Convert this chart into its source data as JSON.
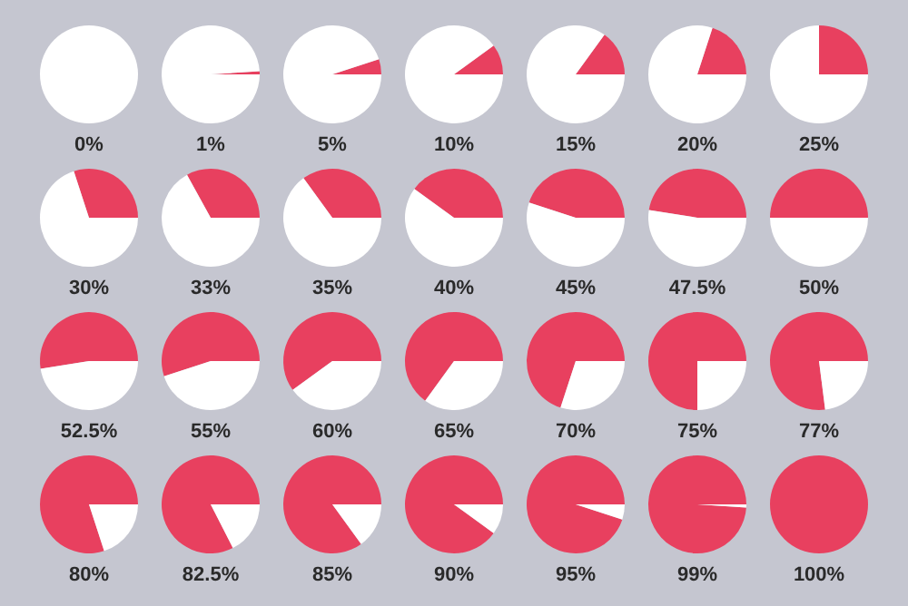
{
  "chart_data": [
    {
      "type": "pie",
      "title": "0%",
      "categories": [
        null,
        null
      ],
      "values": [
        0,
        100
      ],
      "colors": [
        "#e8405f",
        "#ffffff"
      ]
    },
    {
      "type": "pie",
      "title": "1%",
      "categories": [
        null,
        null
      ],
      "values": [
        1,
        99
      ],
      "colors": [
        "#e8405f",
        "#ffffff"
      ]
    },
    {
      "type": "pie",
      "title": "5%",
      "categories": [
        null,
        null
      ],
      "values": [
        5,
        95
      ],
      "colors": [
        "#e8405f",
        "#ffffff"
      ]
    },
    {
      "type": "pie",
      "title": "10%",
      "categories": [
        null,
        null
      ],
      "values": [
        10,
        90
      ],
      "colors": [
        "#e8405f",
        "#ffffff"
      ]
    },
    {
      "type": "pie",
      "title": "15%",
      "categories": [
        null,
        null
      ],
      "values": [
        15,
        85
      ],
      "colors": [
        "#e8405f",
        "#ffffff"
      ]
    },
    {
      "type": "pie",
      "title": "20%",
      "categories": [
        null,
        null
      ],
      "values": [
        20,
        80
      ],
      "colors": [
        "#e8405f",
        "#ffffff"
      ]
    },
    {
      "type": "pie",
      "title": "25%",
      "categories": [
        null,
        null
      ],
      "values": [
        25,
        75
      ],
      "colors": [
        "#e8405f",
        "#ffffff"
      ]
    },
    {
      "type": "pie",
      "title": "30%",
      "categories": [
        null,
        null
      ],
      "values": [
        30,
        70
      ],
      "colors": [
        "#e8405f",
        "#ffffff"
      ]
    },
    {
      "type": "pie",
      "title": "33%",
      "categories": [
        null,
        null
      ],
      "values": [
        33,
        67
      ],
      "colors": [
        "#e8405f",
        "#ffffff"
      ]
    },
    {
      "type": "pie",
      "title": "35%",
      "categories": [
        null,
        null
      ],
      "values": [
        35,
        65
      ],
      "colors": [
        "#e8405f",
        "#ffffff"
      ]
    },
    {
      "type": "pie",
      "title": "40%",
      "categories": [
        null,
        null
      ],
      "values": [
        40,
        60
      ],
      "colors": [
        "#e8405f",
        "#ffffff"
      ]
    },
    {
      "type": "pie",
      "title": "45%",
      "categories": [
        null,
        null
      ],
      "values": [
        45,
        55
      ],
      "colors": [
        "#e8405f",
        "#ffffff"
      ]
    },
    {
      "type": "pie",
      "title": "47.5%",
      "categories": [
        null,
        null
      ],
      "values": [
        47.5,
        52.5
      ],
      "colors": [
        "#e8405f",
        "#ffffff"
      ]
    },
    {
      "type": "pie",
      "title": "50%",
      "categories": [
        null,
        null
      ],
      "values": [
        50,
        50
      ],
      "colors": [
        "#e8405f",
        "#ffffff"
      ]
    },
    {
      "type": "pie",
      "title": "52.5%",
      "categories": [
        null,
        null
      ],
      "values": [
        52.5,
        47.5
      ],
      "colors": [
        "#e8405f",
        "#ffffff"
      ]
    },
    {
      "type": "pie",
      "title": "55%",
      "categories": [
        null,
        null
      ],
      "values": [
        55,
        45
      ],
      "colors": [
        "#e8405f",
        "#ffffff"
      ]
    },
    {
      "type": "pie",
      "title": "60%",
      "categories": [
        null,
        null
      ],
      "values": [
        60,
        40
      ],
      "colors": [
        "#e8405f",
        "#ffffff"
      ]
    },
    {
      "type": "pie",
      "title": "65%",
      "categories": [
        null,
        null
      ],
      "values": [
        65,
        35
      ],
      "colors": [
        "#e8405f",
        "#ffffff"
      ]
    },
    {
      "type": "pie",
      "title": "70%",
      "categories": [
        null,
        null
      ],
      "values": [
        70,
        30
      ],
      "colors": [
        "#e8405f",
        "#ffffff"
      ]
    },
    {
      "type": "pie",
      "title": "75%",
      "categories": [
        null,
        null
      ],
      "values": [
        75,
        25
      ],
      "colors": [
        "#e8405f",
        "#ffffff"
      ]
    },
    {
      "type": "pie",
      "title": "77%",
      "categories": [
        null,
        null
      ],
      "values": [
        77,
        23
      ],
      "colors": [
        "#e8405f",
        "#ffffff"
      ]
    },
    {
      "type": "pie",
      "title": "80%",
      "categories": [
        null,
        null
      ],
      "values": [
        80,
        20
      ],
      "colors": [
        "#e8405f",
        "#ffffff"
      ]
    },
    {
      "type": "pie",
      "title": "82.5%",
      "categories": [
        null,
        null
      ],
      "values": [
        82.5,
        17.5
      ],
      "colors": [
        "#e8405f",
        "#ffffff"
      ]
    },
    {
      "type": "pie",
      "title": "85%",
      "categories": [
        null,
        null
      ],
      "values": [
        85,
        15
      ],
      "colors": [
        "#e8405f",
        "#ffffff"
      ]
    },
    {
      "type": "pie",
      "title": "90%",
      "categories": [
        null,
        null
      ],
      "values": [
        90,
        10
      ],
      "colors": [
        "#e8405f",
        "#ffffff"
      ]
    },
    {
      "type": "pie",
      "title": "95%",
      "categories": [
        null,
        null
      ],
      "values": [
        95,
        5
      ],
      "colors": [
        "#e8405f",
        "#ffffff"
      ]
    },
    {
      "type": "pie",
      "title": "99%",
      "categories": [
        null,
        null
      ],
      "values": [
        99,
        1
      ],
      "colors": [
        "#e8405f",
        "#ffffff"
      ]
    },
    {
      "type": "pie",
      "title": "100%",
      "categories": [
        null,
        null
      ],
      "values": [
        100,
        0
      ],
      "colors": [
        "#e8405f",
        "#ffffff"
      ]
    }
  ]
}
